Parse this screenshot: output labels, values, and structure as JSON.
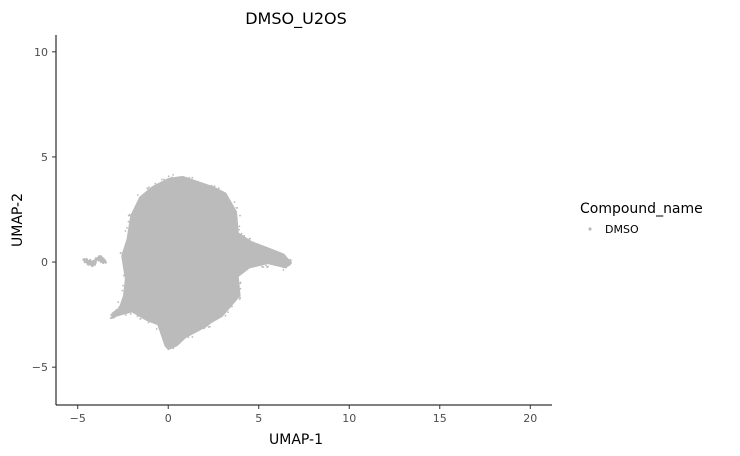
{
  "chart_data": {
    "type": "scatter",
    "title": "DMSO_U2OS",
    "xlabel": "UMAP-1",
    "ylabel": "UMAP-2",
    "xlim": [
      -6.2,
      21.2
    ],
    "ylim": [
      -6.8,
      10.8
    ],
    "x_ticks": [
      -5,
      0,
      5,
      10,
      15,
      20
    ],
    "y_ticks": [
      -5,
      0,
      5,
      10
    ],
    "grid": false,
    "legend": {
      "title": "Compound_name",
      "position": "right",
      "entries": [
        {
          "label": "DMSO",
          "color": "#bbbbbb"
        }
      ]
    },
    "series": [
      {
        "name": "DMSO",
        "color": "#bbbbbb",
        "description_points": {
          "cluster_outline": [
            [
              -2.1,
              2.2
            ],
            [
              -1.6,
              3.1
            ],
            [
              -0.9,
              3.6
            ],
            [
              0,
              4.0
            ],
            [
              0.8,
              4.1
            ],
            [
              1.5,
              3.9
            ],
            [
              2.5,
              3.6
            ],
            [
              3.2,
              3.3
            ],
            [
              3.8,
              2.4
            ],
            [
              3.9,
              1.4
            ],
            [
              4.6,
              1.0
            ],
            [
              5.5,
              0.7
            ],
            [
              6.4,
              0.4
            ],
            [
              6.8,
              0.0
            ],
            [
              6.5,
              -0.3
            ],
            [
              5.5,
              -0.1
            ],
            [
              4.5,
              -0.3
            ],
            [
              3.9,
              -0.7
            ],
            [
              4.0,
              -1.6
            ],
            [
              3.5,
              -2.1
            ],
            [
              3.0,
              -2.6
            ],
            [
              2.4,
              -2.9
            ],
            [
              2.1,
              -3.1
            ],
            [
              1.0,
              -3.6
            ],
            [
              0.5,
              -4.0
            ],
            [
              0.0,
              -4.2
            ],
            [
              -0.2,
              -4.0
            ],
            [
              -0.6,
              -3.0
            ],
            [
              -1.2,
              -2.8
            ],
            [
              -2.0,
              -2.4
            ],
            [
              -2.9,
              -2.6
            ],
            [
              -2.5,
              -1.6
            ],
            [
              -2.4,
              -0.8
            ],
            [
              -2.6,
              0.3
            ],
            [
              -2.3,
              1.1
            ]
          ],
          "tail_left": [
            [
              -4.6,
              0.1
            ],
            [
              -4.2,
              -0.1
            ],
            [
              -3.8,
              0.2
            ],
            [
              -3.5,
              0.0
            ]
          ],
          "tail_lower_left": [
            [
              -3.1,
              -2.6
            ],
            [
              -2.8,
              -2.4
            ],
            [
              -2.5,
              -2.1
            ],
            [
              -2.2,
              -1.9
            ]
          ],
          "tail_right": [
            [
              4.5,
              0.6
            ],
            [
              5.2,
              0.5
            ],
            [
              5.8,
              0.3
            ],
            [
              6.3,
              0.2
            ],
            [
              6.7,
              0.0
            ],
            [
              6.4,
              -0.2
            ]
          ]
        }
      }
    ]
  }
}
